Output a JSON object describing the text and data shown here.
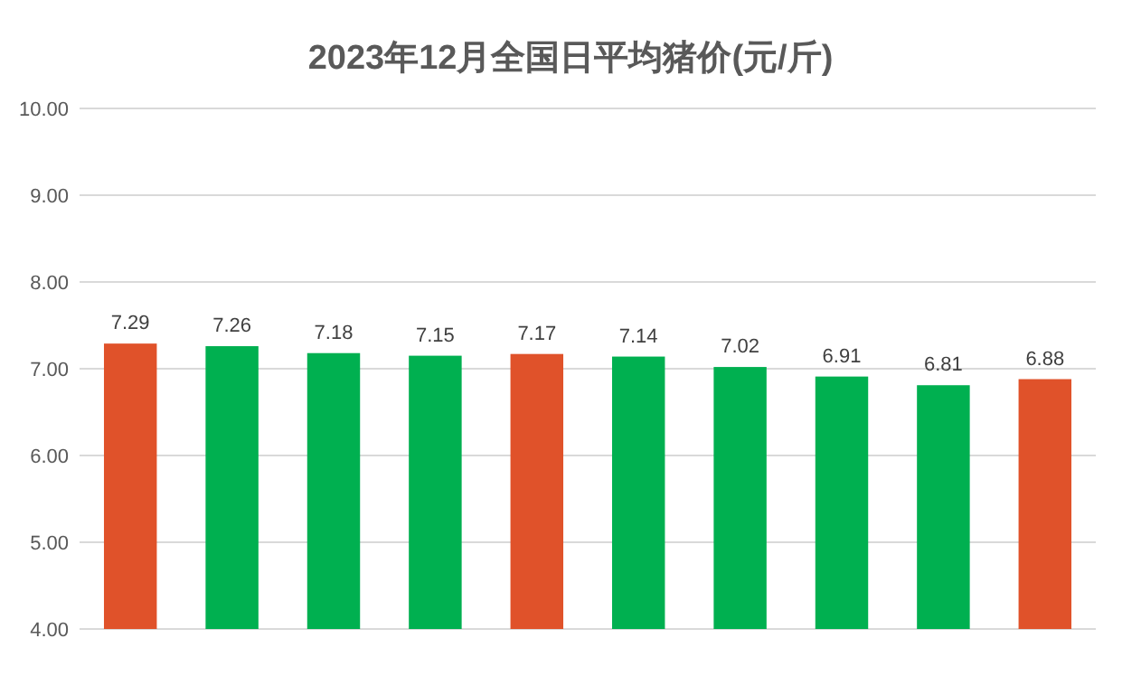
{
  "chart_data": {
    "type": "bar",
    "title": "2023年12月全国日平均猪价(元/斤)",
    "categories": [
      null,
      null,
      null,
      null,
      null,
      null,
      null,
      null,
      null,
      null
    ],
    "values": [
      7.29,
      7.26,
      7.18,
      7.15,
      7.17,
      7.14,
      7.02,
      6.91,
      6.81,
      6.88
    ],
    "colors": [
      "#e0522a",
      "#00b050",
      "#00b050",
      "#00b050",
      "#e0522a",
      "#00b050",
      "#00b050",
      "#00b050",
      "#00b050",
      "#e0522a"
    ],
    "ylim": [
      4,
      10
    ],
    "yticks": [
      {
        "value": 4,
        "label": "4.00"
      },
      {
        "value": 5,
        "label": "5.00"
      },
      {
        "value": 6,
        "label": "6.00"
      },
      {
        "value": 7,
        "label": "7.00"
      },
      {
        "value": 8,
        "label": "8.00"
      },
      {
        "value": 9,
        "label": "9.00"
      },
      {
        "value": 10,
        "label": "10.00"
      }
    ],
    "grid": "y",
    "data_labels": true
  }
}
